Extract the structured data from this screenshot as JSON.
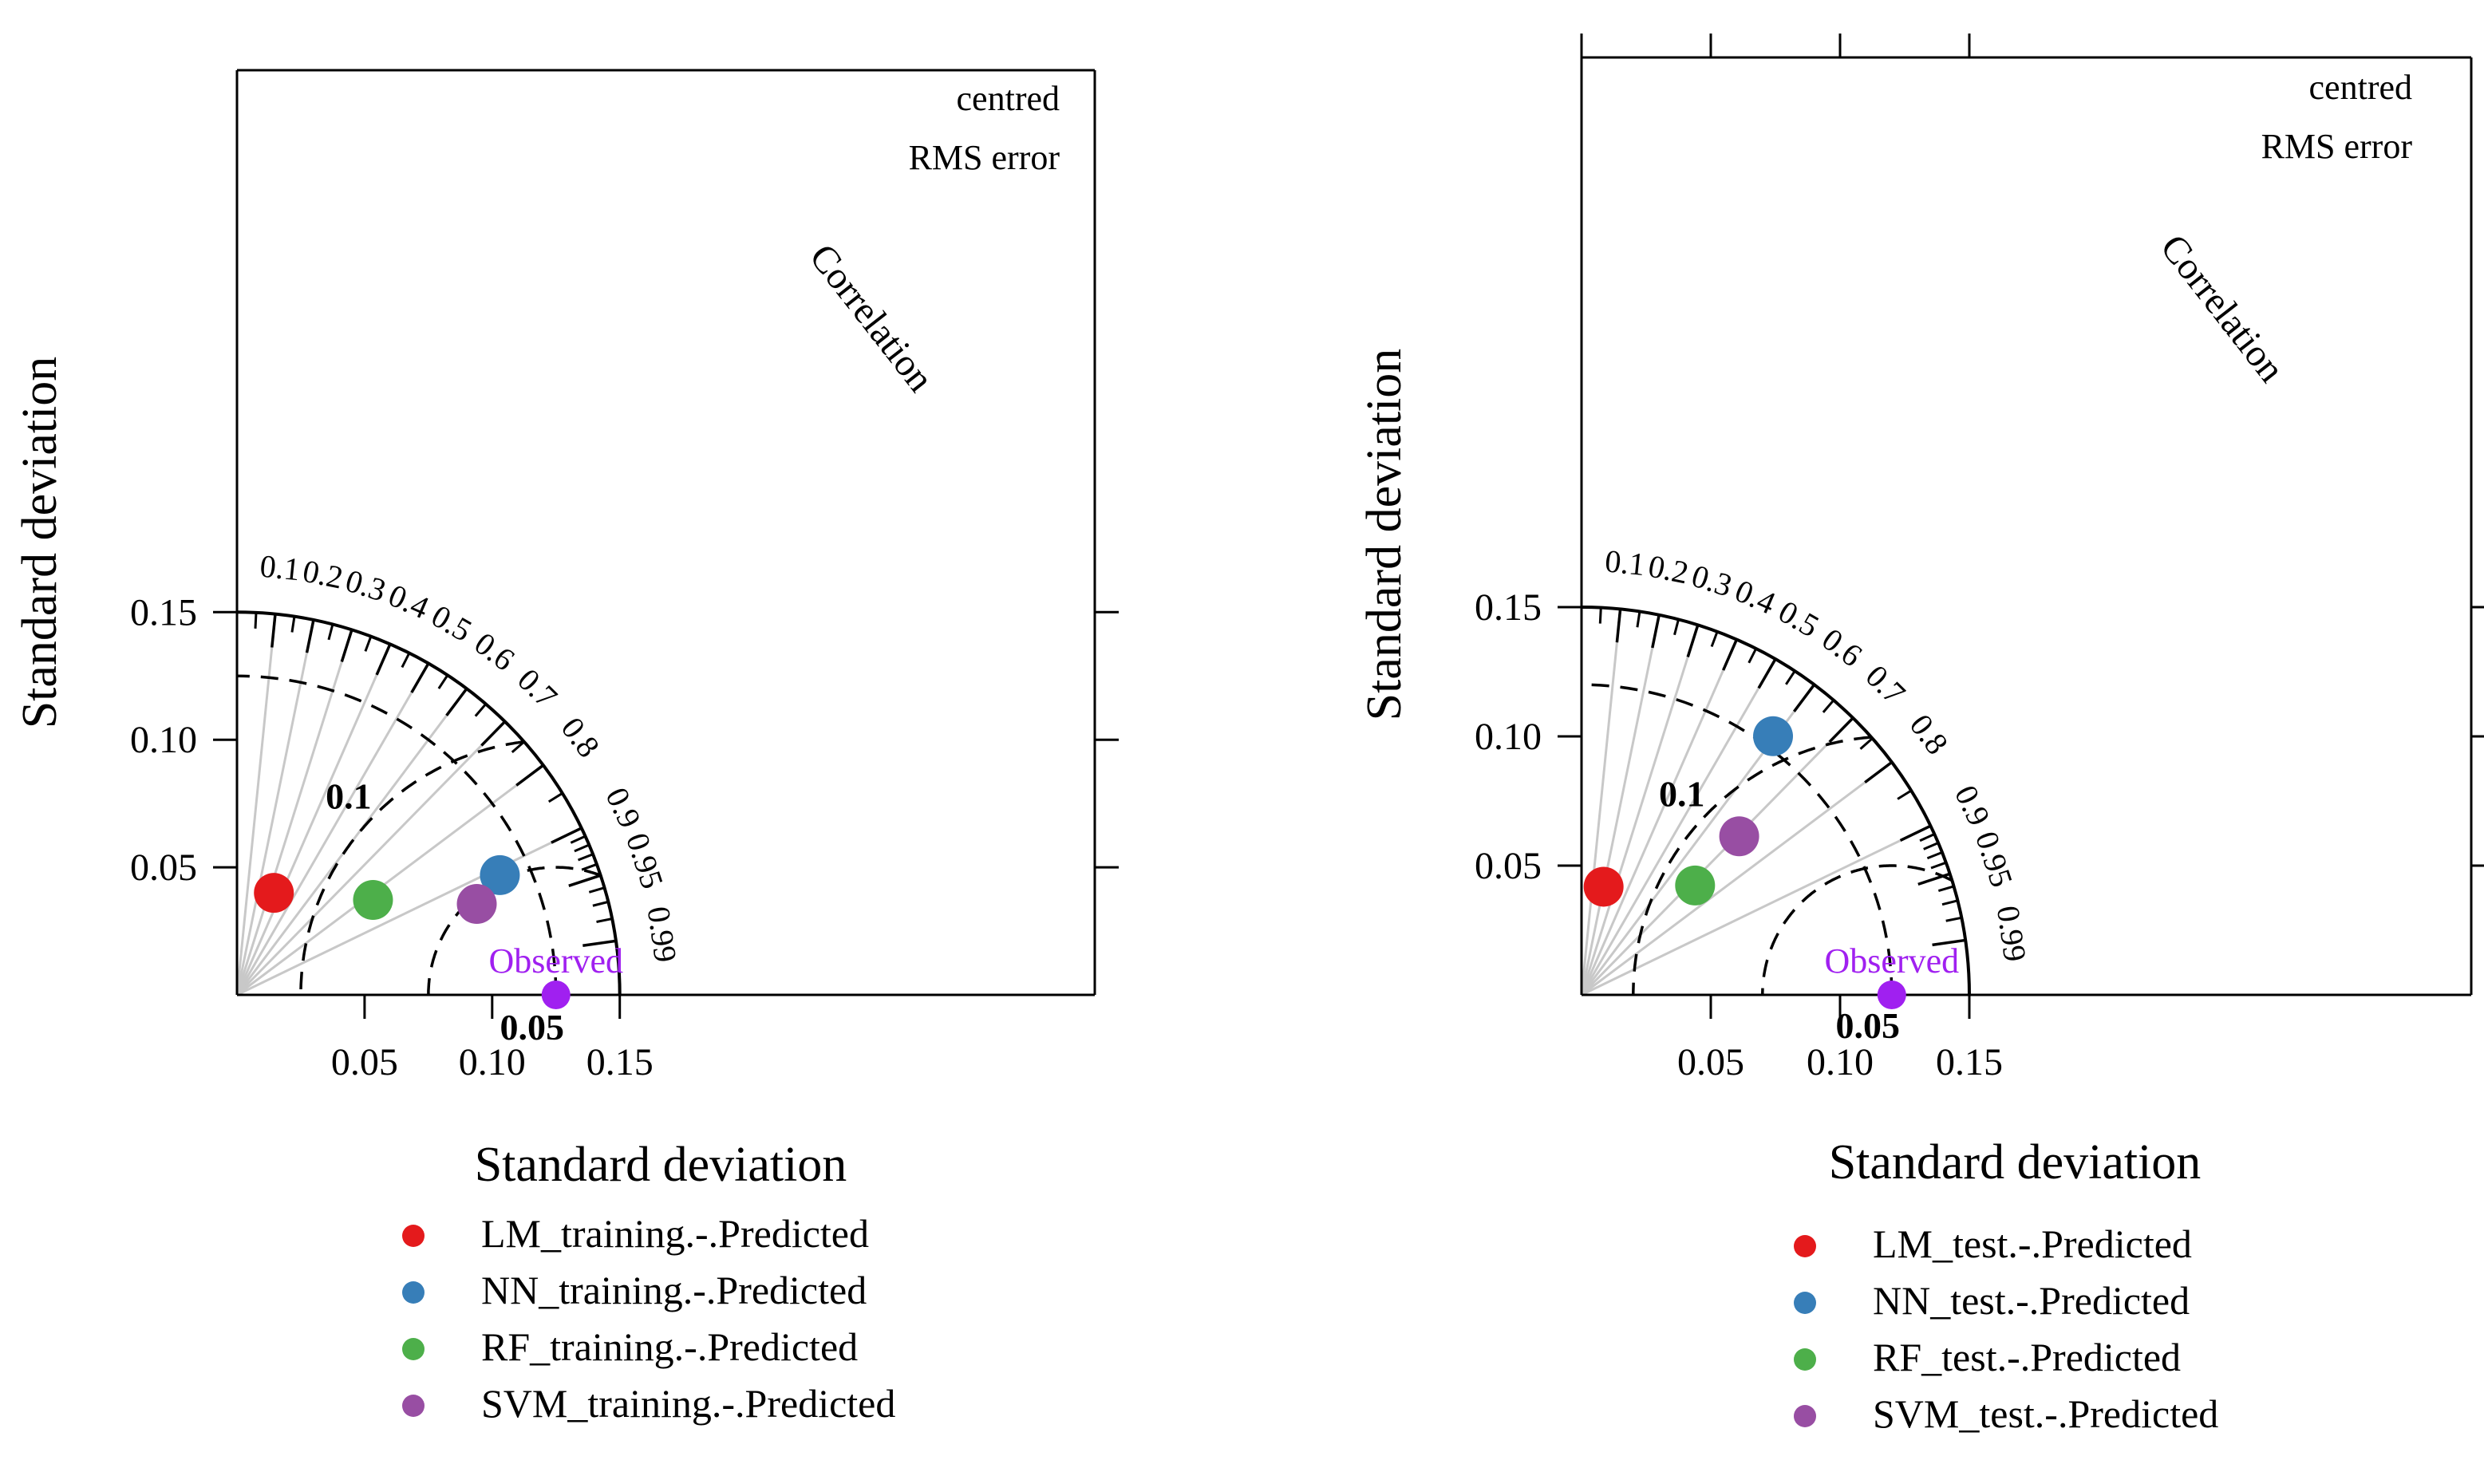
{
  "chart_data": [
    {
      "type": "scatter",
      "subtype": "taylor-diagram",
      "xlabel": "Standard deviation",
      "ylabel": "Standard deviation",
      "corner_label_line1": "centred",
      "corner_label_line2": "RMS error",
      "correlation_label": "Correlation",
      "max_sd": 0.15,
      "plot_limit": 0.17,
      "tick_values": [
        0.05,
        0.1,
        0.15
      ],
      "tick_labels": [
        "0.05",
        "0.10",
        "0.15"
      ],
      "correlation_ticks": [
        0.1,
        0.2,
        0.3,
        0.4,
        0.5,
        0.6,
        0.7,
        0.8,
        0.9,
        0.95,
        0.99
      ],
      "correlation_tick_labels": [
        "0.1",
        "0.2",
        "0.3",
        "0.4",
        "0.5",
        "0.6",
        "0.7",
        "0.8",
        "0.9",
        "0.95",
        "0.99"
      ],
      "rms_contours": [
        0.05,
        0.1
      ],
      "rms_contour_labels": [
        "0.05",
        "0.1"
      ],
      "observed": {
        "label": "Observed",
        "sd": 0.125,
        "color": "#a020f0"
      },
      "series": [
        {
          "name": "LM_training.-.Predicted",
          "sd": 0.0425,
          "correlation": 0.34,
          "color": "#e41a1c"
        },
        {
          "name": "NN_training.-.Predicted",
          "sd": 0.1132,
          "correlation": 0.91,
          "color": "#377eb8"
        },
        {
          "name": "RF_training.-.Predicted",
          "sd": 0.065,
          "correlation": 0.82,
          "color": "#4daf4a"
        },
        {
          "name": "SVM_training.-.Predicted",
          "sd": 0.1005,
          "correlation": 0.935,
          "color": "#984ea3"
        }
      ]
    },
    {
      "type": "scatter",
      "subtype": "taylor-diagram",
      "xlabel": "Standard deviation",
      "ylabel": "Standard deviation",
      "corner_label_line1": "centred",
      "corner_label_line2": "RMS error",
      "correlation_label": "Correlation",
      "max_sd": 0.15,
      "plot_limit": 0.17,
      "tick_values": [
        0.05,
        0.1,
        0.15
      ],
      "tick_labels": [
        "0.05",
        "0.10",
        "0.15"
      ],
      "correlation_ticks": [
        0.1,
        0.2,
        0.3,
        0.4,
        0.5,
        0.6,
        0.7,
        0.8,
        0.9,
        0.95,
        0.99
      ],
      "correlation_tick_labels": [
        "0.1",
        "0.2",
        "0.3",
        "0.4",
        "0.5",
        "0.6",
        "0.7",
        "0.8",
        "0.9",
        "0.95",
        "0.99"
      ],
      "rms_contours": [
        0.05,
        0.1
      ],
      "rms_contour_labels": [
        "0.05",
        "0.1"
      ],
      "observed": {
        "label": "Observed",
        "sd": 0.12,
        "color": "#a020f0"
      },
      "series": [
        {
          "name": "LM_test.-.Predicted",
          "sd": 0.0427,
          "correlation": 0.2,
          "color": "#e41a1c"
        },
        {
          "name": "NN_test.-.Predicted",
          "sd": 0.1245,
          "correlation": 0.595,
          "color": "#377eb8"
        },
        {
          "name": "RF_test.-.Predicted",
          "sd": 0.061,
          "correlation": 0.72,
          "color": "#4daf4a"
        },
        {
          "name": "SVM_test.-.Predicted",
          "sd": 0.0865,
          "correlation": 0.705,
          "color": "#984ea3"
        }
      ]
    }
  ]
}
